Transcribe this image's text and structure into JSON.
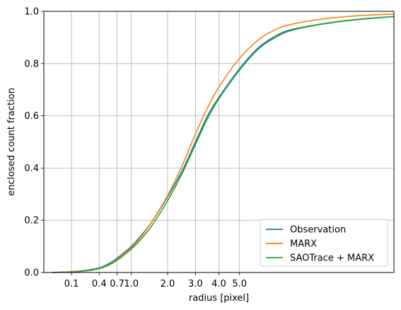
{
  "chart_data": {
    "type": "line",
    "title": "",
    "xlabel": "radius [pixel]",
    "ylabel": "enclosed count fraction",
    "x_scale": "sqrt",
    "xlim": [
      0,
      16
    ],
    "ylim": [
      0,
      1
    ],
    "grid": true,
    "legend_position": "lower-right",
    "x_ticks": [
      0.1,
      0.4,
      0.7,
      1.0,
      2.0,
      3.0,
      4.0,
      5.0
    ],
    "x_tick_labels": [
      "0.1",
      "0.4",
      "0.7",
      "1.0",
      "2.0",
      "3.0",
      "4.0",
      "5.0"
    ],
    "y_ticks": [
      0.0,
      0.2,
      0.4,
      0.6,
      0.8,
      1.0
    ],
    "y_tick_labels": [
      "0.0",
      "0.2",
      "0.4",
      "0.6",
      "0.8",
      "1.0"
    ],
    "x": [
      0.01,
      0.1,
      0.2,
      0.3,
      0.4,
      0.5,
      0.6,
      0.7,
      0.8,
      1.0,
      1.2,
      1.5,
      2.0,
      2.5,
      3.0,
      3.5,
      4.0,
      5.0,
      6.0,
      7.0,
      8.0,
      10.0,
      12.0,
      14.0,
      16.0
    ],
    "series": [
      {
        "name": "Observation",
        "color": "#1f77b4",
        "values": [
          0.0,
          0.003,
          0.007,
          0.012,
          0.018,
          0.028,
          0.04,
          0.055,
          0.07,
          0.1,
          0.135,
          0.19,
          0.29,
          0.39,
          0.5,
          0.6,
          0.67,
          0.78,
          0.86,
          0.905,
          0.93,
          0.951,
          0.965,
          0.974,
          0.98
        ]
      },
      {
        "name": "MARX",
        "color": "#ff7f0e",
        "values": [
          0.0,
          0.003,
          0.006,
          0.01,
          0.016,
          0.025,
          0.036,
          0.05,
          0.065,
          0.095,
          0.13,
          0.19,
          0.295,
          0.41,
          0.53,
          0.63,
          0.71,
          0.82,
          0.89,
          0.93,
          0.95,
          0.97,
          0.98,
          0.986,
          0.989
        ]
      },
      {
        "name": "SAOTrace + MARX",
        "color": "#2ca02c",
        "values": [
          0.0,
          0.002,
          0.005,
          0.009,
          0.015,
          0.023,
          0.034,
          0.047,
          0.061,
          0.09,
          0.122,
          0.175,
          0.275,
          0.38,
          0.49,
          0.59,
          0.665,
          0.775,
          0.855,
          0.9,
          0.927,
          0.95,
          0.964,
          0.973,
          0.98
        ]
      }
    ]
  }
}
